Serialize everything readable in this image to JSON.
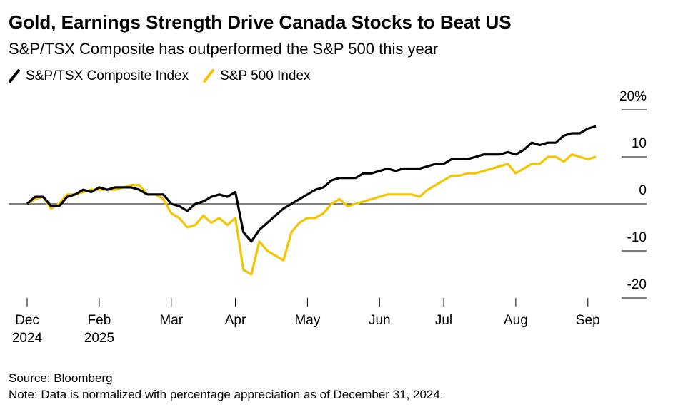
{
  "chart_data": {
    "type": "line",
    "title": "Gold, Earnings Strength Drive Canada Stocks to Beat US",
    "subtitle": "S&P/TSX Composite has outperformed the S&P 500 this year",
    "categories": [
      "Dec 2024",
      null,
      null,
      null,
      null,
      null,
      null,
      null,
      null,
      "Feb 2025",
      null,
      null,
      null,
      null,
      null,
      null,
      null,
      null,
      "Mar",
      null,
      null,
      null,
      null,
      null,
      null,
      null,
      "Apr",
      null,
      null,
      null,
      null,
      null,
      null,
      null,
      null,
      "May",
      null,
      null,
      null,
      null,
      null,
      null,
      null,
      null,
      "Jun",
      null,
      null,
      null,
      null,
      null,
      null,
      null,
      "Jul",
      null,
      null,
      null,
      null,
      null,
      null,
      null,
      null,
      "Aug",
      null,
      null,
      null,
      null,
      null,
      null,
      null,
      null,
      "Sep",
      null
    ],
    "series": [
      {
        "name": "S&P/TSX Composite Index",
        "color": "#000000",
        "values": [
          0,
          1.5,
          1.5,
          -0.5,
          -0.5,
          1.5,
          2,
          3,
          2.5,
          3.5,
          3,
          3.5,
          3.5,
          3.5,
          3,
          2,
          2,
          2,
          0,
          -0.5,
          -1.5,
          0,
          0.5,
          1.5,
          2,
          1.5,
          2.5,
          -6,
          -8,
          -5.5,
          -4,
          -2.5,
          -1,
          0,
          1,
          2,
          3,
          3.5,
          5,
          5.5,
          5.5,
          5.5,
          6.5,
          6.5,
          7,
          7.5,
          7,
          7.5,
          7.5,
          7.5,
          8,
          8.5,
          8.5,
          9.5,
          9.5,
          9.5,
          10,
          10.5,
          10.5,
          10.5,
          11,
          10.5,
          11.5,
          13,
          12.5,
          13,
          13,
          14.5,
          15,
          15,
          16,
          16.5
        ]
      },
      {
        "name": "S&P 500 Index",
        "color": "#f5c400",
        "values": [
          0,
          1,
          1.5,
          -1,
          0,
          2,
          2,
          2.5,
          3,
          3,
          3,
          3,
          3.5,
          4,
          4,
          2,
          2,
          1,
          -2,
          -3,
          -5,
          -4.5,
          -2.5,
          -4,
          -3,
          -4.5,
          -3,
          -14,
          -15,
          -8,
          -10,
          -11,
          -12,
          -6,
          -4,
          -3,
          -3,
          -2,
          0,
          1,
          -0.5,
          0,
          0.5,
          1,
          1.5,
          2,
          2,
          2,
          2,
          1.5,
          3,
          4,
          5,
          6,
          6,
          6.5,
          6.5,
          7,
          7.5,
          8,
          8.5,
          6.5,
          7.5,
          8.5,
          8.5,
          10,
          10,
          9,
          10.5,
          10,
          9.5,
          10
        ]
      }
    ],
    "ylim": [
      -20,
      20
    ],
    "yticks": [
      {
        "value": 20,
        "label": "20%"
      },
      10,
      0,
      -10,
      -20
    ],
    "source": "Source: Bloomberg",
    "note": "Note: Data is normalized with percentage appreciation as of December 31, 2024."
  }
}
